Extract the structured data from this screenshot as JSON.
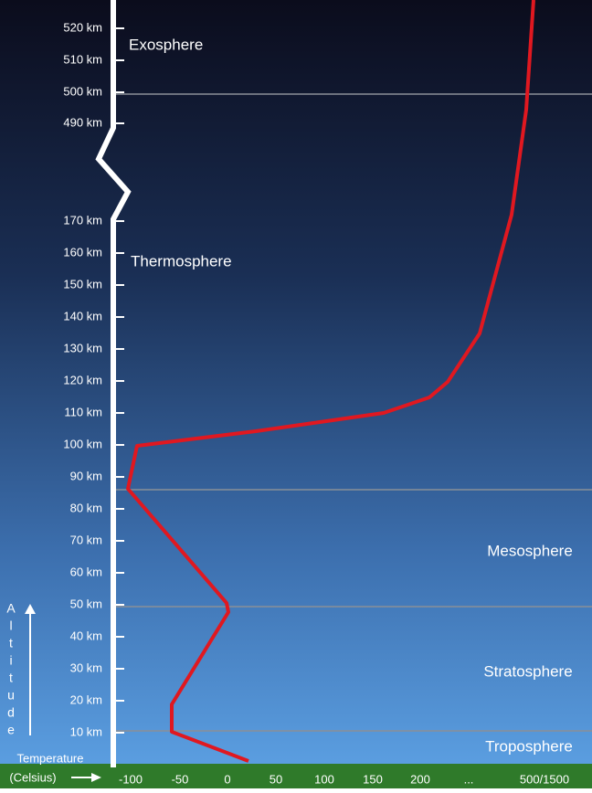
{
  "altitude_labels": [
    "520 km",
    "510 km",
    "500 km",
    "490 km",
    "170 km",
    "160 km",
    "150 km",
    "140 km",
    "130 km",
    "120 km",
    "110 km",
    "100 km",
    "90 km",
    "80 km",
    "70 km",
    "60 km",
    "50 km",
    "40 km",
    "30 km",
    "20 km",
    "10 km"
  ],
  "layers": [
    "Exosphere",
    "Thermosphere",
    "Mesosphere",
    "Stratosphere",
    "Troposphere"
  ],
  "temperature_labels": [
    "-100",
    "-50",
    "0",
    "50",
    "100",
    "150",
    "200",
    "...",
    "500/1500"
  ],
  "x_axis_title": [
    "Temperature",
    "(Celsius)"
  ],
  "y_axis_title": [
    "A",
    "l",
    "t",
    "i",
    "t",
    "u",
    "d",
    "e"
  ]
}
